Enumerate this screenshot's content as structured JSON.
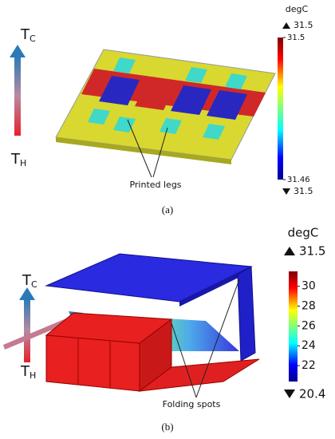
{
  "panel_a": {
    "temp_cold": {
      "main": "T",
      "sub": "C"
    },
    "temp_hot": {
      "main": "T",
      "sub": "H"
    },
    "unit": "degC",
    "max": 31.5,
    "min": 31.5,
    "ticks": [
      31.5,
      31.46
    ],
    "annotation": "Printed legs",
    "caption": "(a)"
  },
  "panel_b": {
    "temp_cold": {
      "main": "T",
      "sub": "C"
    },
    "temp_hot": {
      "main": "T",
      "sub": "H"
    },
    "unit": "degC",
    "max": 31.5,
    "min": 20.4,
    "ticks": [
      30,
      28,
      26,
      24,
      22
    ],
    "annotation": "Folding spots",
    "caption": "(b)"
  }
}
